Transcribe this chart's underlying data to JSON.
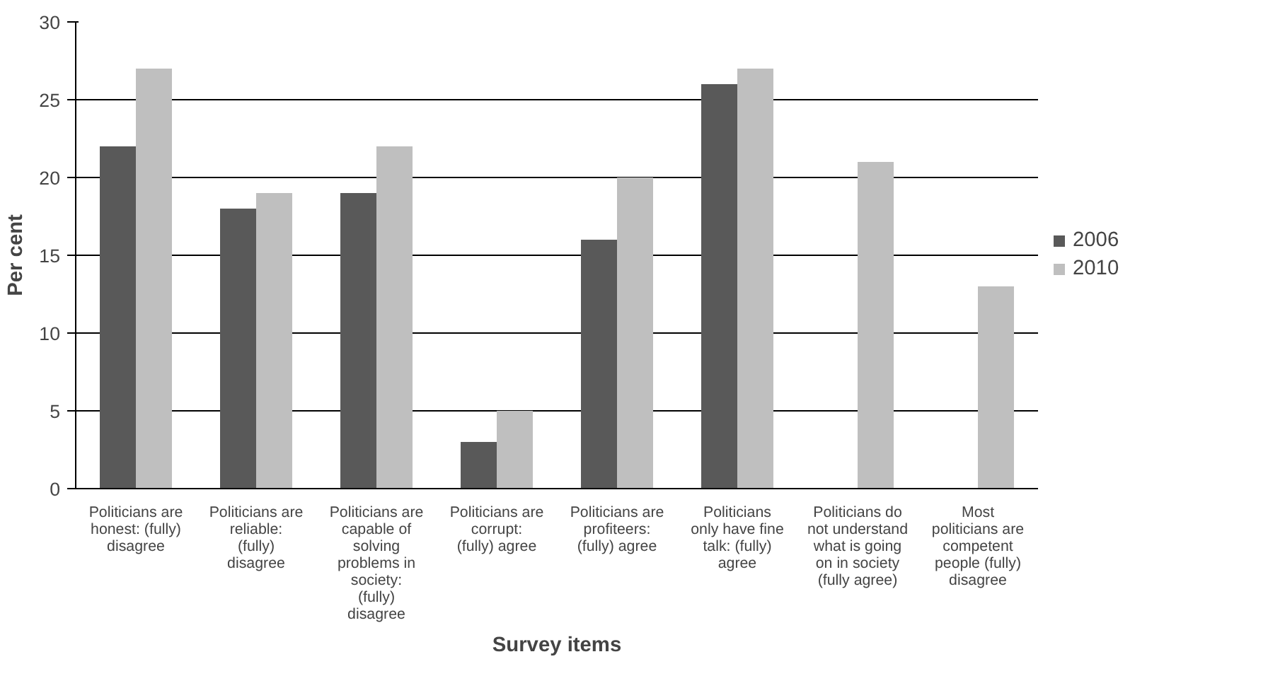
{
  "chart_data": {
    "type": "bar",
    "xlabel": "Survey items",
    "ylabel": "Per cent",
    "categories": [
      "Politicians are honest: (fully) disagree",
      "Politicians are reliable: (fully) disagree",
      "Politicians are capable of solving problems in society: (fully) disagree",
      "Politicians are corrupt: (fully) agree",
      "Politicians are profiteers: (fully) agree",
      "Politicians only have fine talk: (fully) agree",
      "Politicians do not understand what is going on in society (fully agree)",
      "Most politicians are competent people (fully) disagree"
    ],
    "series": [
      {
        "name": "2006",
        "color": "#595959",
        "values": [
          22,
          18,
          19,
          3,
          16,
          26,
          null,
          null
        ]
      },
      {
        "name": "2010",
        "color": "#bfbfbf",
        "values": [
          27,
          19,
          22,
          5,
          20,
          27,
          21,
          13
        ]
      }
    ],
    "ylim": [
      0,
      30
    ],
    "yticks": [
      0,
      5,
      10,
      15,
      20,
      25,
      30
    ],
    "grid": "y",
    "legend": "right"
  }
}
